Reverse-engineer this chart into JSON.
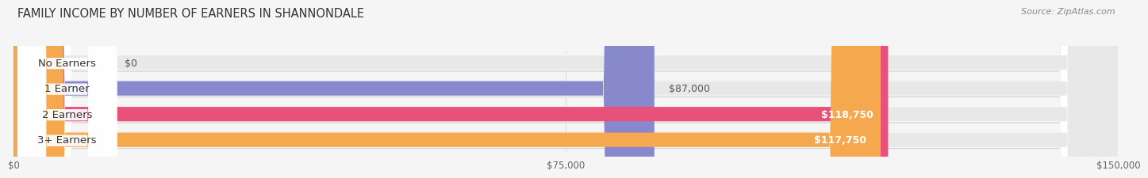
{
  "title": "FAMILY INCOME BY NUMBER OF EARNERS IN SHANNONDALE",
  "source": "Source: ZipAtlas.com",
  "categories": [
    "No Earners",
    "1 Earner",
    "2 Earners",
    "3+ Earners"
  ],
  "values": [
    0,
    87000,
    118750,
    117750
  ],
  "bar_colors": [
    "#5ecfcf",
    "#8888cc",
    "#e8527a",
    "#f5a84e"
  ],
  "track_color": "#e8e8e8",
  "track_shadow_color": "#d0d0d0",
  "xlim": [
    0,
    150000
  ],
  "xticks": [
    0,
    75000,
    150000
  ],
  "xtick_labels": [
    "$0",
    "$75,000",
    "$150,000"
  ],
  "value_labels": [
    "$0",
    "$87,000",
    "$118,750",
    "$117,750"
  ],
  "background_color": "#f5f5f5",
  "bar_height": 0.62,
  "title_fontsize": 10.5,
  "label_fontsize": 9.5,
  "value_fontsize": 9
}
